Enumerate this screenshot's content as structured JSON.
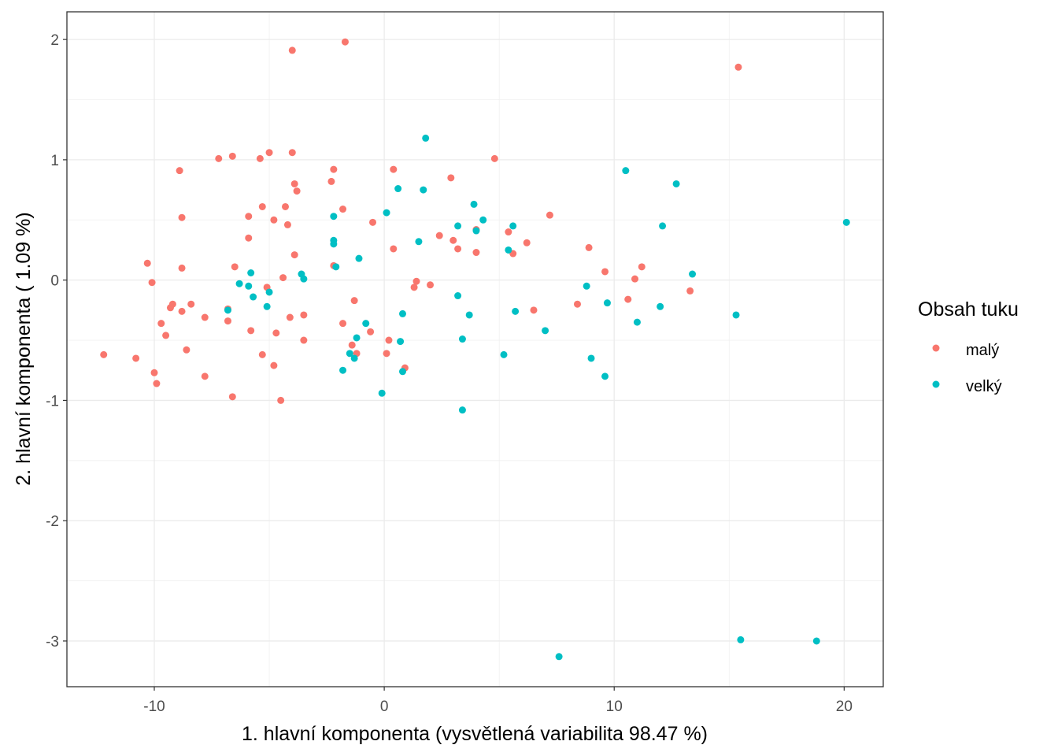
{
  "chart_data": {
    "type": "scatter",
    "title": "",
    "xlabel": "1. hlavní komponenta (vysvětlená variabilita 98.47 %)",
    "ylabel": "2. hlavní komponenta ( 1.09 %)",
    "xlim": [
      -13.8,
      21.7
    ],
    "ylim": [
      -3.38,
      2.23
    ],
    "xticks": [
      -10,
      0,
      10,
      20
    ],
    "xtick_labels": [
      "-10",
      "0",
      "10",
      "20"
    ],
    "yticks": [
      -3,
      -2,
      -1,
      0,
      1,
      2
    ],
    "ytick_labels": [
      "-3",
      "-2",
      "-1",
      "0",
      "1",
      "2"
    ],
    "grid": true,
    "legend": {
      "title": "Obsah tuku",
      "placement": "right"
    },
    "series": [
      {
        "name": "malý",
        "color": "#F8766D",
        "points": [
          [
            -12.2,
            -0.62
          ],
          [
            -10.8,
            -0.65
          ],
          [
            -10.3,
            0.14
          ],
          [
            -10.1,
            -0.02
          ],
          [
            -10.0,
            -0.77
          ],
          [
            -9.9,
            -0.86
          ],
          [
            -9.7,
            -0.36
          ],
          [
            -9.5,
            -0.46
          ],
          [
            -9.3,
            -0.23
          ],
          [
            -9.2,
            -0.2
          ],
          [
            -8.9,
            0.91
          ],
          [
            -8.8,
            0.1
          ],
          [
            -8.8,
            -0.26
          ],
          [
            -8.8,
            0.52
          ],
          [
            -8.6,
            -0.58
          ],
          [
            -8.4,
            -0.2
          ],
          [
            -7.8,
            -0.31
          ],
          [
            -7.8,
            -0.8
          ],
          [
            -7.2,
            1.01
          ],
          [
            -6.8,
            -0.34
          ],
          [
            -6.8,
            -0.24
          ],
          [
            -6.6,
            1.03
          ],
          [
            -6.6,
            -0.97
          ],
          [
            -6.5,
            0.11
          ],
          [
            -5.9,
            0.35
          ],
          [
            -5.9,
            0.53
          ],
          [
            -5.8,
            -0.42
          ],
          [
            -5.4,
            1.01
          ],
          [
            -5.3,
            0.61
          ],
          [
            -5.3,
            -0.62
          ],
          [
            -5.1,
            -0.06
          ],
          [
            -5.0,
            1.06
          ],
          [
            -4.8,
            0.5
          ],
          [
            -4.8,
            -0.71
          ],
          [
            -4.7,
            -0.44
          ],
          [
            -4.5,
            -1.0
          ],
          [
            -4.4,
            0.02
          ],
          [
            -4.3,
            0.61
          ],
          [
            -4.2,
            0.46
          ],
          [
            -4.1,
            -0.31
          ],
          [
            -4.0,
            1.91
          ],
          [
            -4.0,
            1.06
          ],
          [
            -3.9,
            0.8
          ],
          [
            -3.9,
            0.21
          ],
          [
            -3.8,
            0.74
          ],
          [
            -3.5,
            -0.29
          ],
          [
            -3.5,
            -0.5
          ],
          [
            -2.3,
            0.82
          ],
          [
            -2.2,
            0.92
          ],
          [
            -2.2,
            0.12
          ],
          [
            -1.8,
            0.59
          ],
          [
            -1.8,
            -0.36
          ],
          [
            -1.7,
            1.98
          ],
          [
            -1.4,
            -0.54
          ],
          [
            -1.3,
            -0.17
          ],
          [
            -1.2,
            -0.61
          ],
          [
            -0.6,
            -0.43
          ],
          [
            -0.5,
            0.48
          ],
          [
            0.2,
            -0.5
          ],
          [
            0.1,
            -0.61
          ],
          [
            0.4,
            0.92
          ],
          [
            0.4,
            0.26
          ],
          [
            0.9,
            -0.73
          ],
          [
            1.3,
            -0.06
          ],
          [
            1.4,
            -0.01
          ],
          [
            2.0,
            -0.04
          ],
          [
            2.4,
            0.37
          ],
          [
            2.9,
            0.85
          ],
          [
            3.0,
            0.33
          ],
          [
            3.2,
            0.26
          ],
          [
            4.0,
            0.42
          ],
          [
            4.0,
            0.23
          ],
          [
            4.8,
            1.01
          ],
          [
            5.4,
            0.4
          ],
          [
            5.6,
            0.22
          ],
          [
            6.2,
            0.31
          ],
          [
            6.5,
            -0.25
          ],
          [
            7.2,
            0.54
          ],
          [
            8.4,
            -0.2
          ],
          [
            8.9,
            0.27
          ],
          [
            9.6,
            0.07
          ],
          [
            10.6,
            -0.16
          ],
          [
            10.9,
            0.01
          ],
          [
            11.2,
            0.11
          ],
          [
            13.3,
            -0.09
          ],
          [
            15.4,
            1.77
          ]
        ]
      },
      {
        "name": "velký",
        "color": "#00BFC4",
        "points": [
          [
            -6.8,
            -0.25
          ],
          [
            -6.3,
            -0.03
          ],
          [
            -5.9,
            -0.05
          ],
          [
            -5.8,
            0.06
          ],
          [
            -5.7,
            -0.14
          ],
          [
            -5.1,
            -0.22
          ],
          [
            -5.0,
            -0.1
          ],
          [
            -3.6,
            0.05
          ],
          [
            -3.5,
            0.01
          ],
          [
            -2.2,
            0.53
          ],
          [
            -2.2,
            0.33
          ],
          [
            -2.2,
            0.3
          ],
          [
            -2.1,
            0.11
          ],
          [
            -1.8,
            -0.75
          ],
          [
            -1.5,
            -0.61
          ],
          [
            -1.3,
            -0.65
          ],
          [
            -1.2,
            -0.48
          ],
          [
            -1.1,
            0.18
          ],
          [
            -0.8,
            -0.36
          ],
          [
            -0.1,
            -0.94
          ],
          [
            0.1,
            0.56
          ],
          [
            0.6,
            0.76
          ],
          [
            0.7,
            -0.51
          ],
          [
            0.8,
            -0.28
          ],
          [
            0.8,
            -0.76
          ],
          [
            1.5,
            0.32
          ],
          [
            1.7,
            0.75
          ],
          [
            1.8,
            1.18
          ],
          [
            3.2,
            0.45
          ],
          [
            3.2,
            -0.13
          ],
          [
            3.4,
            -0.49
          ],
          [
            3.4,
            -1.08
          ],
          [
            3.7,
            -0.29
          ],
          [
            3.9,
            0.63
          ],
          [
            4.0,
            0.41
          ],
          [
            4.3,
            0.5
          ],
          [
            5.2,
            -0.62
          ],
          [
            5.4,
            0.25
          ],
          [
            5.6,
            0.45
          ],
          [
            5.7,
            -0.26
          ],
          [
            7.0,
            -0.42
          ],
          [
            7.6,
            -3.13
          ],
          [
            8.8,
            -0.05
          ],
          [
            9.0,
            -0.65
          ],
          [
            9.6,
            -0.8
          ],
          [
            9.7,
            -0.19
          ],
          [
            10.5,
            0.91
          ],
          [
            11.0,
            -0.35
          ],
          [
            12.0,
            -0.22
          ],
          [
            12.1,
            0.45
          ],
          [
            12.7,
            0.8
          ],
          [
            13.4,
            0.05
          ],
          [
            15.3,
            -0.29
          ],
          [
            15.5,
            -2.99
          ],
          [
            18.8,
            -3.0
          ],
          [
            20.1,
            0.48
          ]
        ]
      }
    ]
  }
}
